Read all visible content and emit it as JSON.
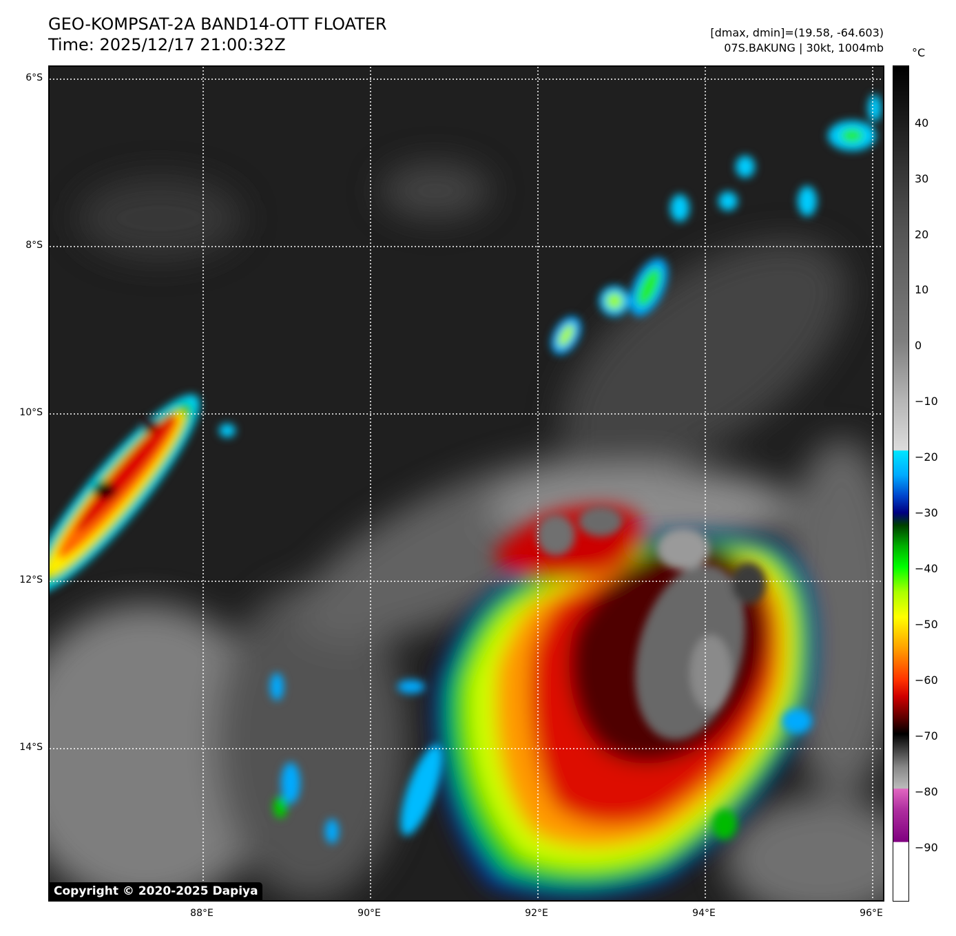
{
  "header": {
    "title": "GEO-KOMPSAT-2A BAND14-OTT FLOATER",
    "time": "Time: 2025/12/17 21:00:32Z",
    "stats": "[dmax, dmin]=(19.58, -64.603)",
    "storm": "07S.BAKUNG | 30kt, 1004mb"
  },
  "axes": {
    "lat_labels": [
      "6°S",
      "8°S",
      "10°S",
      "12°S",
      "14°S"
    ],
    "lon_labels": [
      "88°E",
      "90°E",
      "92°E",
      "94°E",
      "96°E"
    ]
  },
  "colorbar": {
    "unit": "°C",
    "ticks": [
      "40",
      "30",
      "20",
      "10",
      "0",
      "−10",
      "−20",
      "−30",
      "−40",
      "−50",
      "−60",
      "−70",
      "−80",
      "−90"
    ]
  },
  "copyright": "Copyright © 2020-2025 Dapiya",
  "colors": {
    "background_ocean": "#1f1f1f",
    "cold_core": "#c00000",
    "overshoot": "#707070",
    "green_band": "#00ee00",
    "cyan_edge": "#00e5ff"
  }
}
